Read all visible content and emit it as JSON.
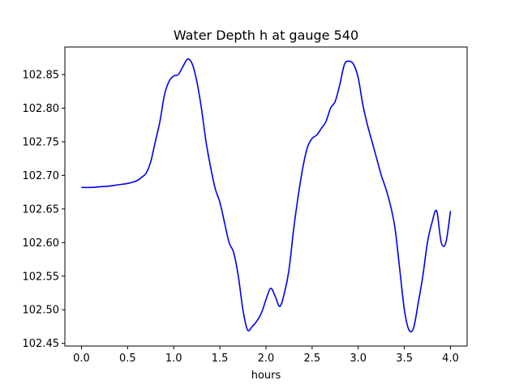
{
  "chart_data": {
    "type": "line",
    "title": "Water Depth h at gauge 540",
    "xlabel": "hours",
    "ylabel": "",
    "xlim": [
      -0.18,
      4.18
    ],
    "ylim": [
      102.446,
      102.891
    ],
    "grid": false,
    "legend": "none",
    "x_ticks": [
      0.0,
      0.5,
      1.0,
      1.5,
      2.0,
      2.5,
      3.0,
      3.5,
      4.0
    ],
    "x_tick_labels": [
      "0.0",
      "0.5",
      "1.0",
      "1.5",
      "2.0",
      "2.5",
      "3.0",
      "3.5",
      "4.0"
    ],
    "y_ticks": [
      102.45,
      102.5,
      102.55,
      102.6,
      102.65,
      102.7,
      102.75,
      102.8,
      102.85
    ],
    "y_tick_labels": [
      "102.45",
      "102.50",
      "102.55",
      "102.60",
      "102.65",
      "102.70",
      "102.75",
      "102.80",
      "102.85"
    ],
    "series": [
      {
        "color": "#0000ee",
        "x": [
          0.0,
          0.1,
          0.2,
          0.3,
          0.4,
          0.5,
          0.6,
          0.65,
          0.7,
          0.75,
          0.8,
          0.85,
          0.9,
          0.95,
          1.0,
          1.05,
          1.1,
          1.15,
          1.2,
          1.25,
          1.3,
          1.35,
          1.4,
          1.45,
          1.5,
          1.55,
          1.6,
          1.65,
          1.7,
          1.75,
          1.8,
          1.85,
          1.9,
          1.95,
          2.0,
          2.05,
          2.1,
          2.15,
          2.2,
          2.25,
          2.3,
          2.35,
          2.4,
          2.45,
          2.5,
          2.55,
          2.6,
          2.65,
          2.7,
          2.75,
          2.8,
          2.85,
          2.9,
          2.95,
          3.0,
          3.05,
          3.1,
          3.15,
          3.2,
          3.25,
          3.3,
          3.35,
          3.4,
          3.45,
          3.5,
          3.55,
          3.6,
          3.65,
          3.7,
          3.75,
          3.8,
          3.85,
          3.9,
          3.95,
          4.0
        ],
        "y": [
          102.682,
          102.682,
          102.683,
          102.684,
          102.686,
          102.688,
          102.692,
          102.697,
          102.703,
          102.72,
          102.75,
          102.78,
          102.82,
          102.84,
          102.848,
          102.85,
          102.862,
          102.873,
          102.866,
          102.84,
          102.8,
          102.75,
          102.712,
          102.68,
          102.66,
          102.63,
          102.6,
          102.585,
          102.55,
          102.5,
          102.47,
          102.475,
          102.483,
          102.495,
          102.515,
          102.532,
          102.52,
          102.505,
          102.525,
          102.56,
          102.62,
          102.67,
          102.712,
          102.742,
          102.755,
          102.76,
          102.77,
          102.78,
          102.8,
          102.81,
          102.835,
          102.865,
          102.87,
          102.865,
          102.845,
          102.805,
          102.775,
          102.75,
          102.725,
          102.7,
          102.68,
          102.655,
          102.62,
          102.56,
          102.5,
          102.47,
          102.473,
          102.51,
          102.55,
          102.6,
          102.63,
          102.647,
          102.6,
          102.6,
          102.647
        ]
      }
    ]
  }
}
